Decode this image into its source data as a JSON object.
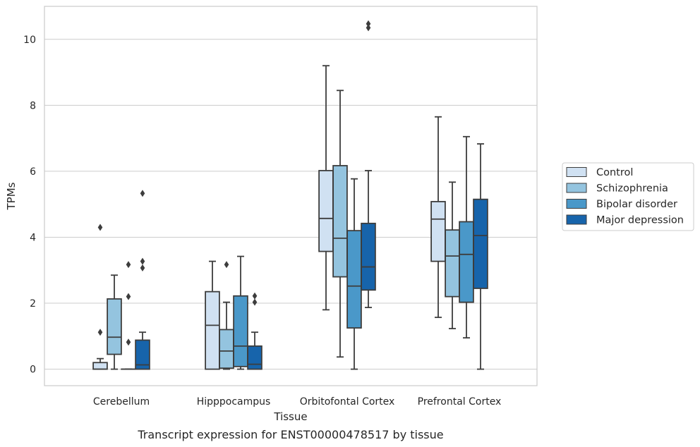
{
  "caption": "Transcript expression for ENST00000478517 by tissue",
  "chart_data": {
    "type": "boxplot",
    "xlabel": "Tissue",
    "ylabel": "TPMs",
    "ylim": [
      -0.5,
      11
    ],
    "yticks": [
      0,
      2,
      4,
      6,
      8,
      10
    ],
    "grid": "horizontal",
    "legend_position": "right",
    "categories": [
      "Cerebellum",
      "Hipppocampus",
      "Orbitofontal Cortex",
      "Prefrontal Cortex"
    ],
    "series": [
      {
        "name": "Control",
        "color": "#d0e1f2",
        "boxes": [
          {
            "whislo": 0,
            "q1": 0,
            "med": 0,
            "q3": 0.2,
            "whishi": 0.32,
            "fliers": [
              1.12,
              4.3
            ]
          },
          {
            "whislo": 0,
            "q1": 0,
            "med": 1.33,
            "q3": 2.35,
            "whishi": 3.27,
            "fliers": []
          },
          {
            "whislo": 1.8,
            "q1": 3.57,
            "med": 4.57,
            "q3": 6.02,
            "whishi": 9.2,
            "fliers": []
          },
          {
            "whislo": 1.57,
            "q1": 3.27,
            "med": 4.55,
            "q3": 5.08,
            "whishi": 7.65,
            "fliers": []
          }
        ]
      },
      {
        "name": "Schizophrenia",
        "color": "#94c4df",
        "boxes": [
          {
            "whislo": 0,
            "q1": 0.45,
            "med": 0.97,
            "q3": 2.13,
            "whishi": 2.85,
            "fliers": []
          },
          {
            "whislo": 0,
            "q1": 0.03,
            "med": 0.55,
            "q3": 1.2,
            "whishi": 2.03,
            "fliers": [
              3.17
            ]
          },
          {
            "whislo": 0.37,
            "q1": 2.8,
            "med": 3.97,
            "q3": 6.17,
            "whishi": 8.45,
            "fliers": []
          },
          {
            "whislo": 1.23,
            "q1": 2.2,
            "med": 3.43,
            "q3": 4.22,
            "whishi": 5.67,
            "fliers": []
          }
        ]
      },
      {
        "name": "Bipolar disorder",
        "color": "#4a98c9",
        "boxes": [
          {
            "whislo": 0,
            "q1": 0,
            "med": 0,
            "q3": 0,
            "whishi": 0,
            "fliers": [
              0.82,
              2.2,
              3.17
            ]
          },
          {
            "whislo": 0,
            "q1": 0.08,
            "med": 0.7,
            "q3": 2.22,
            "whishi": 3.42,
            "fliers": []
          },
          {
            "whislo": 0,
            "q1": 1.25,
            "med": 2.52,
            "q3": 4.2,
            "whishi": 5.77,
            "fliers": []
          },
          {
            "whislo": 0.95,
            "q1": 2.03,
            "med": 3.48,
            "q3": 4.47,
            "whishi": 7.05,
            "fliers": []
          }
        ]
      },
      {
        "name": "Major depression",
        "color": "#1764ab",
        "boxes": [
          {
            "whislo": 0,
            "q1": 0,
            "med": 0.13,
            "q3": 0.88,
            "whishi": 1.12,
            "fliers": [
              3.07,
              3.27,
              5.33
            ]
          },
          {
            "whislo": 0,
            "q1": 0,
            "med": 0.15,
            "q3": 0.7,
            "whishi": 1.12,
            "fliers": [
              2.03,
              2.22
            ]
          },
          {
            "whislo": 1.87,
            "q1": 2.4,
            "med": 3.1,
            "q3": 4.42,
            "whishi": 6.02,
            "fliers": [
              10.35,
              10.47
            ]
          },
          {
            "whislo": 0,
            "q1": 2.45,
            "med": 4.05,
            "q3": 5.15,
            "whishi": 6.83,
            "fliers": []
          }
        ]
      }
    ]
  }
}
